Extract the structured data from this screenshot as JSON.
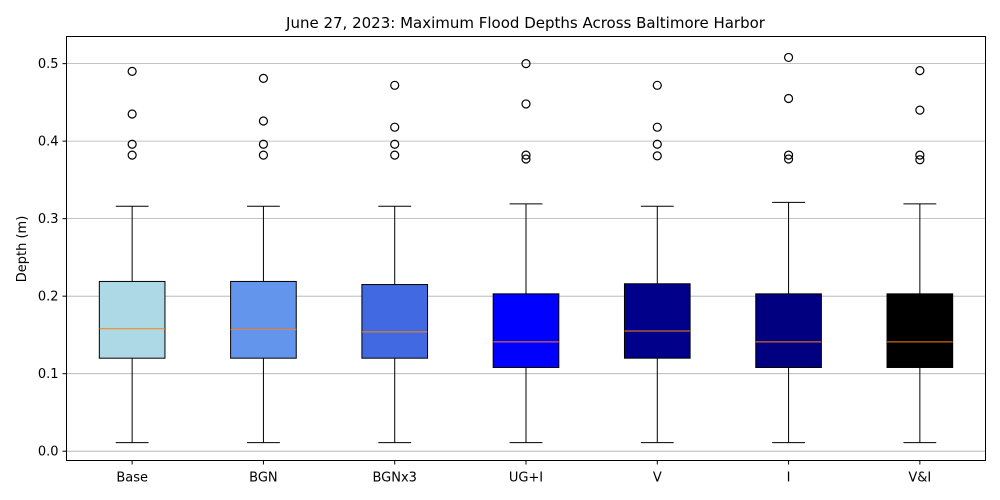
{
  "chart_data": {
    "type": "box",
    "title": "June 27, 2023: Maximum Flood Depths Across Baltimore Harbor",
    "xlabel": "",
    "ylabel": "Depth (m)",
    "ylim": [
      -0.012,
      0.535
    ],
    "yticks": [
      0.0,
      0.1,
      0.2,
      0.3,
      0.4,
      0.5
    ],
    "ytick_labels": [
      "0.0",
      "0.1",
      "0.2",
      "0.3",
      "0.4",
      "0.5"
    ],
    "grid": "horizontal",
    "categories": [
      "Base",
      "BGN",
      "BGNx3",
      "UG+I",
      "V",
      "I",
      "V&I"
    ],
    "median_color": "#ff7f0e",
    "boxes": [
      {
        "label": "Base",
        "color": "#add8e6",
        "whisker_low": 0.011,
        "q1": 0.12,
        "median": 0.158,
        "q3": 0.219,
        "whisker_high": 0.316,
        "outliers": [
          0.382,
          0.396,
          0.435,
          0.49
        ]
      },
      {
        "label": "BGN",
        "color": "#6495ed",
        "whisker_low": 0.011,
        "q1": 0.12,
        "median": 0.157,
        "q3": 0.219,
        "whisker_high": 0.316,
        "outliers": [
          0.382,
          0.396,
          0.426,
          0.481
        ]
      },
      {
        "label": "BGNx3",
        "color": "#4169e1",
        "whisker_low": 0.011,
        "q1": 0.12,
        "median": 0.154,
        "q3": 0.215,
        "whisker_high": 0.316,
        "outliers": [
          0.382,
          0.396,
          0.418,
          0.472
        ]
      },
      {
        "label": "UG+I",
        "color": "#0000ff",
        "whisker_low": 0.011,
        "q1": 0.108,
        "median": 0.141,
        "q3": 0.203,
        "whisker_high": 0.319,
        "outliers": [
          0.377,
          0.382,
          0.448,
          0.5
        ]
      },
      {
        "label": "V",
        "color": "#00008b",
        "whisker_low": 0.011,
        "q1": 0.12,
        "median": 0.155,
        "q3": 0.216,
        "whisker_high": 0.316,
        "outliers": [
          0.381,
          0.396,
          0.418,
          0.472
        ]
      },
      {
        "label": "I",
        "color": "#000080",
        "whisker_low": 0.011,
        "q1": 0.108,
        "median": 0.141,
        "q3": 0.203,
        "whisker_high": 0.321,
        "outliers": [
          0.377,
          0.382,
          0.455,
          0.508
        ]
      },
      {
        "label": "V&I",
        "color": "#000000",
        "whisker_low": 0.011,
        "q1": 0.108,
        "median": 0.141,
        "q3": 0.203,
        "whisker_high": 0.319,
        "outliers": [
          0.376,
          0.382,
          0.44,
          0.491
        ]
      }
    ]
  }
}
